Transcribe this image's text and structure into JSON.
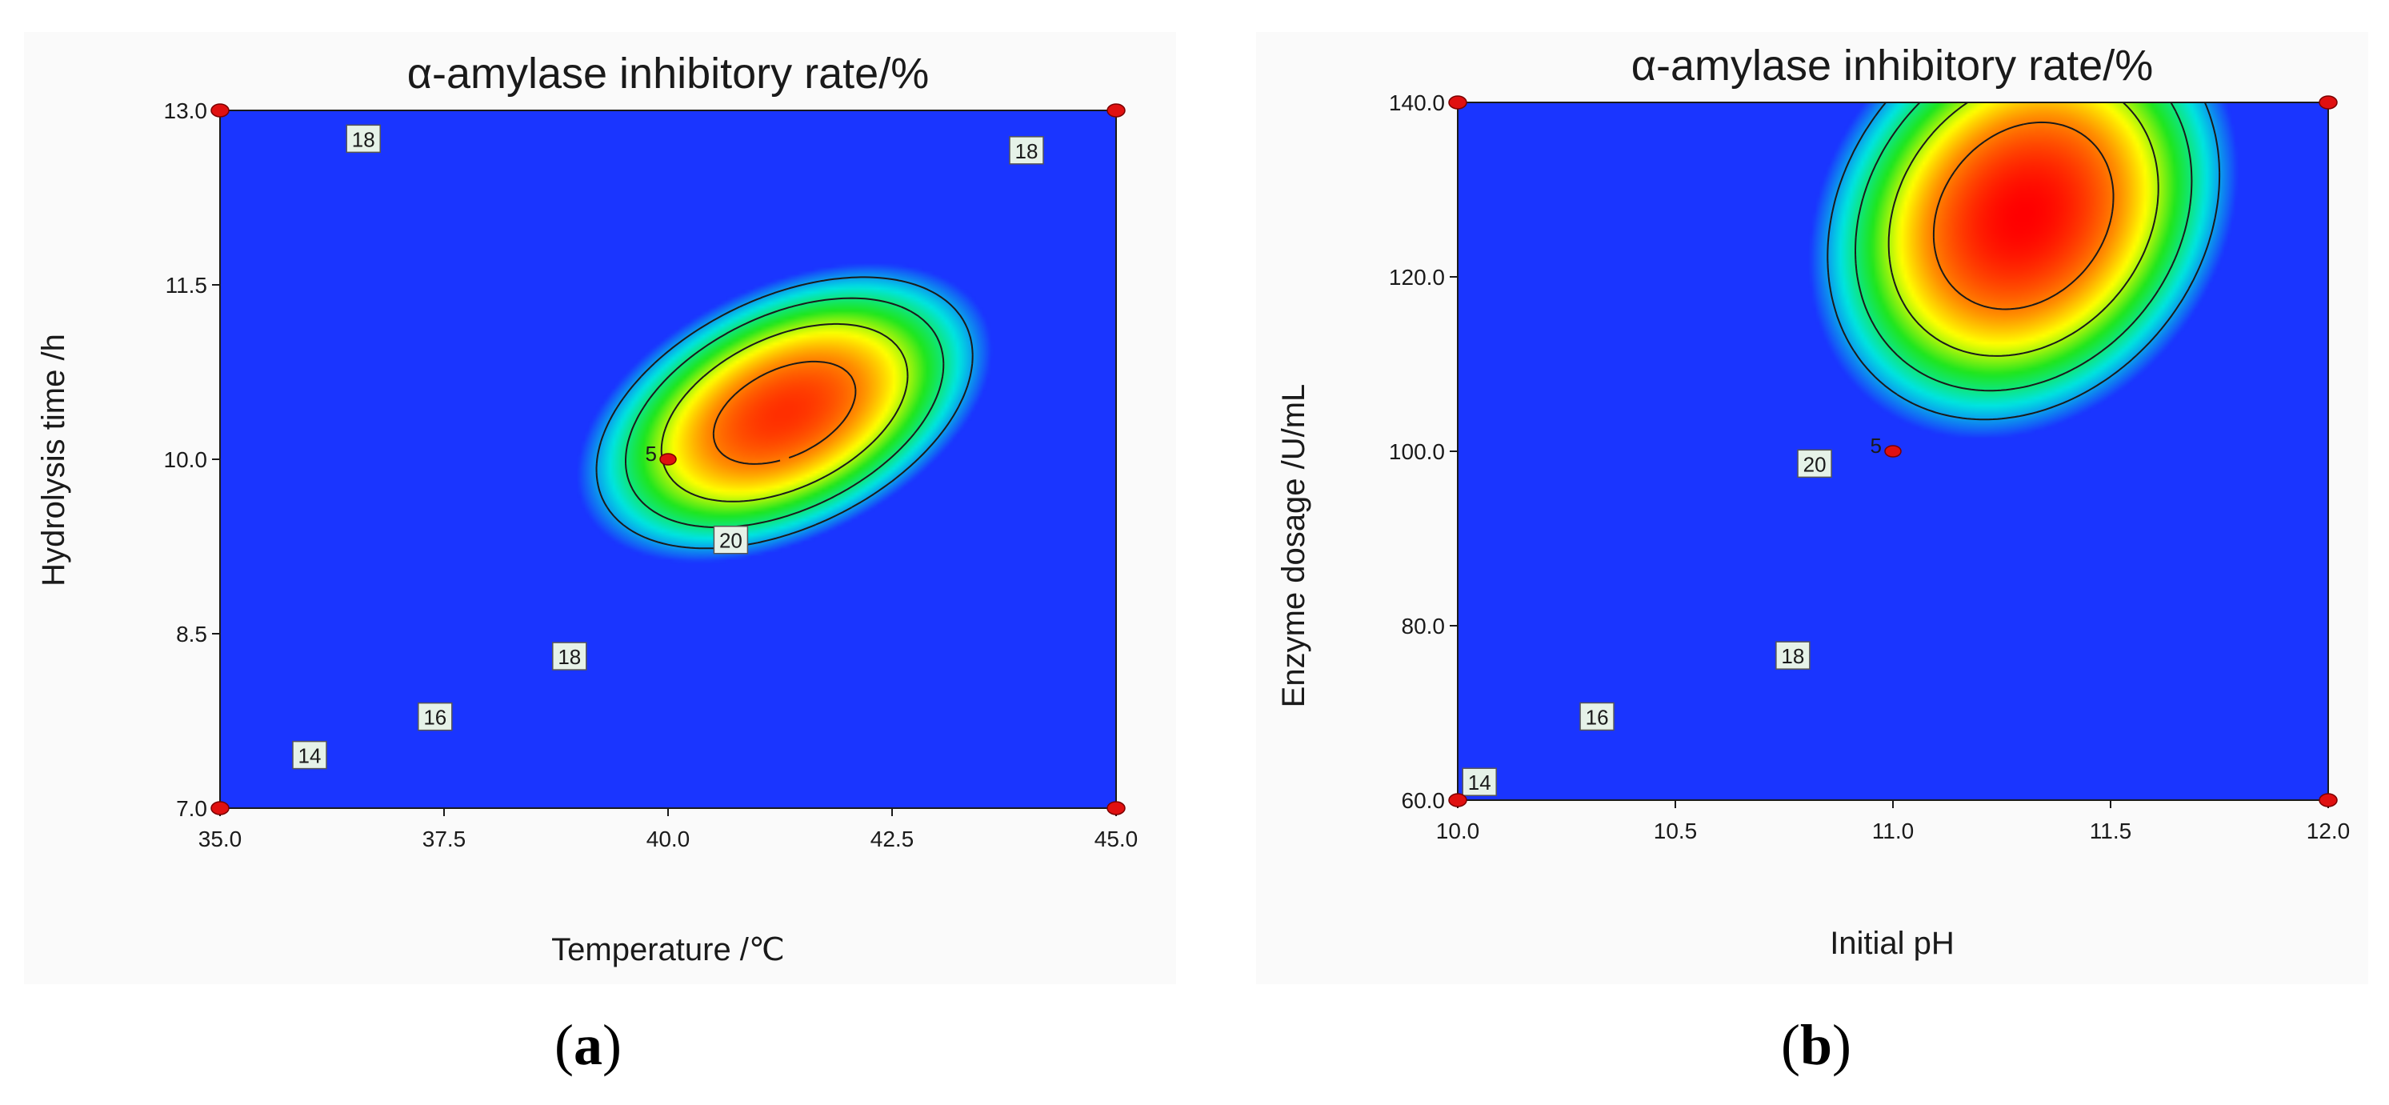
{
  "colors": {
    "low": "#1a35ff",
    "mid_low": "#00e5e0",
    "mid": "#1ee61e",
    "mid_high": "#ffff00",
    "high": "#ff8c00",
    "max": "#ff0000"
  },
  "chart_data": [
    {
      "type": "contour",
      "panel_label": "a",
      "title": "α-amylase inhibitory rate/%",
      "xlabel": "Temperature /℃",
      "ylabel": "Hydrolysis time /h",
      "xlim": [
        35.0,
        45.0
      ],
      "ylim": [
        7.0,
        13.0
      ],
      "xticks": [
        "35.0",
        "37.5",
        "40.0",
        "42.5",
        "45.0"
      ],
      "xtick_values": [
        35.0,
        37.5,
        40.0,
        42.5,
        45.0
      ],
      "yticks": [
        "7.0",
        "8.5",
        "10.0",
        "11.5",
        "13.0"
      ],
      "ytick_values": [
        7.0,
        8.5,
        10.0,
        11.5,
        13.0
      ],
      "model": {
        "max": 21.0,
        "cx": 41.3,
        "cy": 10.4,
        "sx": 7.2,
        "sy": 4.0,
        "rho": -0.42
      },
      "contour_levels": [
        14,
        16,
        18,
        20
      ],
      "contour_labels": [
        {
          "text": "18",
          "x": 36.6,
          "y": 12.75
        },
        {
          "text": "18",
          "x": 44.0,
          "y": 12.65
        },
        {
          "text": "20",
          "x": 40.7,
          "y": 9.3
        },
        {
          "text": "18",
          "x": 38.9,
          "y": 8.3
        },
        {
          "text": "16",
          "x": 37.4,
          "y": 7.78
        },
        {
          "text": "14",
          "x": 36.0,
          "y": 7.45
        }
      ],
      "center_point": {
        "x": 40.0,
        "y": 10.0,
        "label": "5"
      },
      "design_points": [
        {
          "x": 35.0,
          "y": 13.0
        },
        {
          "x": 45.0,
          "y": 13.0
        },
        {
          "x": 35.0,
          "y": 7.0
        },
        {
          "x": 45.0,
          "y": 7.0
        }
      ]
    },
    {
      "type": "contour",
      "panel_label": "b",
      "title": "α-amylase inhibitory rate/%",
      "xlabel": "Initial pH",
      "ylabel": "Enzyme dosage /U/mL",
      "xlim": [
        10.0,
        12.0
      ],
      "ylim": [
        60.0,
        140.0
      ],
      "xticks": [
        "10.0",
        "10.5",
        "11.0",
        "11.5",
        "12.0"
      ],
      "xtick_values": [
        10.0,
        10.5,
        11.0,
        11.5,
        12.0
      ],
      "yticks": [
        "60.0",
        "80.0",
        "100.0",
        "120.0",
        "140.0"
      ],
      "ytick_values": [
        60.0,
        80.0,
        100.0,
        120.0,
        140.0
      ],
      "model": {
        "max": 21.6,
        "cx": 11.3,
        "cy": 127.0,
        "sx": 1.6,
        "sy": 83.0,
        "rho": -0.2
      },
      "contour_levels": [
        14,
        16,
        18,
        20
      ],
      "contour_labels": [
        {
          "text": "20",
          "x": 10.82,
          "y": 98.5
        },
        {
          "text": "18",
          "x": 10.77,
          "y": 76.5
        },
        {
          "text": "16",
          "x": 10.32,
          "y": 69.5
        },
        {
          "text": "14",
          "x": 10.05,
          "y": 62.0
        }
      ],
      "center_point": {
        "x": 11.0,
        "y": 100.0,
        "label": "5"
      },
      "design_points": [
        {
          "x": 10.0,
          "y": 140.0
        },
        {
          "x": 12.0,
          "y": 140.0
        },
        {
          "x": 10.0,
          "y": 60.0
        },
        {
          "x": 12.0,
          "y": 60.0
        }
      ]
    }
  ]
}
